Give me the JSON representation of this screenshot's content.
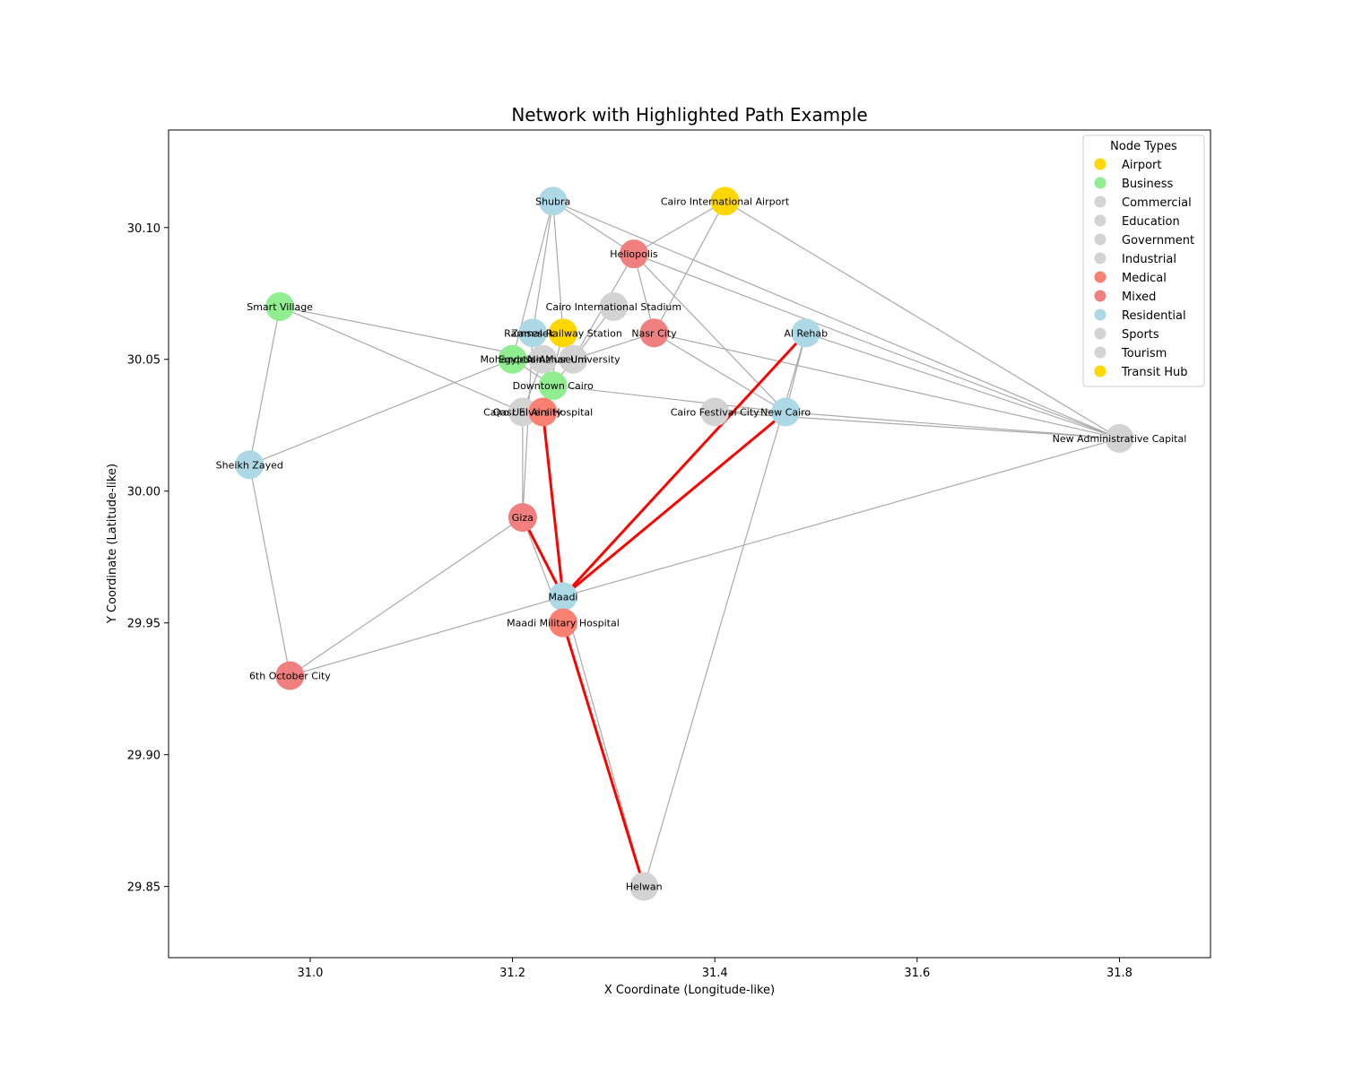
{
  "chart_data": {
    "type": "network",
    "title": "Network with Highlighted Path Example",
    "xlabel": "X Coordinate (Longitude-like)",
    "ylabel": "Y Coordinate (Latitude-like)",
    "xlim": [
      30.86,
      31.89
    ],
    "ylim": [
      29.823,
      30.137
    ],
    "xticks": [
      31.0,
      31.2,
      31.4,
      31.6,
      31.8
    ],
    "yticks": [
      29.85,
      29.9,
      29.95,
      30.0,
      30.05,
      30.1
    ],
    "xtick_labels": [
      "31.0",
      "31.2",
      "31.4",
      "31.6",
      "31.8"
    ],
    "ytick_labels": [
      "29.85",
      "29.90",
      "29.95",
      "30.00",
      "30.05",
      "30.10"
    ],
    "grid": false,
    "legend": {
      "title": "Node Types",
      "placement": "top-right",
      "entries": [
        {
          "label": "Airport",
          "color": "#ffd700"
        },
        {
          "label": "Business",
          "color": "#90ee90"
        },
        {
          "label": "Commercial",
          "color": "#d3d3d3"
        },
        {
          "label": "Education",
          "color": "#d3d3d3"
        },
        {
          "label": "Government",
          "color": "#d3d3d3"
        },
        {
          "label": "Industrial",
          "color": "#d3d3d3"
        },
        {
          "label": "Medical",
          "color": "#fa8072"
        },
        {
          "label": "Mixed",
          "color": "#f08080"
        },
        {
          "label": "Residential",
          "color": "#add8e6"
        },
        {
          "label": "Sports",
          "color": "#d3d3d3"
        },
        {
          "label": "Tourism",
          "color": "#d3d3d3"
        },
        {
          "label": "Transit Hub",
          "color": "#ffd700"
        }
      ]
    },
    "type_colors": {
      "Airport": "#ffd700",
      "Business": "#90ee90",
      "Commercial": "#d3d3d3",
      "Education": "#d3d3d3",
      "Government": "#d3d3d3",
      "Industrial": "#d3d3d3",
      "Medical": "#fa8072",
      "Mixed": "#f08080",
      "Residential": "#add8e6",
      "Sports": "#d3d3d3",
      "Tourism": "#d3d3d3",
      "Transit Hub": "#ffd700"
    },
    "edge_color": "#aaaaaa",
    "highlight_color": "#ff0000",
    "nodes": [
      {
        "id": "shubra",
        "label": "Shubra",
        "x": 31.24,
        "y": 30.11,
        "type": "Residential"
      },
      {
        "id": "airport",
        "label": "Cairo International Airport",
        "x": 31.41,
        "y": 30.11,
        "type": "Airport"
      },
      {
        "id": "heliopolis",
        "label": "Heliopolis",
        "x": 31.32,
        "y": 30.09,
        "type": "Mixed"
      },
      {
        "id": "smartvillage",
        "label": "Smart Village",
        "x": 30.97,
        "y": 30.07,
        "type": "Business"
      },
      {
        "id": "stadium",
        "label": "Cairo International Stadium",
        "x": 31.3,
        "y": 30.07,
        "type": "Sports"
      },
      {
        "id": "zamalek",
        "label": "Zamalek",
        "x": 31.22,
        "y": 30.06,
        "type": "Residential"
      },
      {
        "id": "ramses",
        "label": "Ramses Railway Station",
        "x": 31.25,
        "y": 30.06,
        "type": "Transit Hub"
      },
      {
        "id": "nasrcity",
        "label": "Nasr City",
        "x": 31.34,
        "y": 30.06,
        "type": "Mixed"
      },
      {
        "id": "alrehab",
        "label": "Al Rehab",
        "x": 31.49,
        "y": 30.06,
        "type": "Residential"
      },
      {
        "id": "mohandessin",
        "label": "Mohandessin",
        "x": 31.2,
        "y": 30.05,
        "type": "Business"
      },
      {
        "id": "museum",
        "label": "Egyptian Museum",
        "x": 31.23,
        "y": 30.05,
        "type": "Tourism"
      },
      {
        "id": "alazhar",
        "label": "Al-Azhar University",
        "x": 31.26,
        "y": 30.05,
        "type": "Education"
      },
      {
        "id": "downtown",
        "label": "Downtown Cairo",
        "x": 31.24,
        "y": 30.04,
        "type": "Business"
      },
      {
        "id": "cairouniv",
        "label": "Cairo University",
        "x": 31.21,
        "y": 30.03,
        "type": "Education"
      },
      {
        "id": "qasr",
        "label": "Qasr El Aini Hospital",
        "x": 31.23,
        "y": 30.03,
        "type": "Medical"
      },
      {
        "id": "festival",
        "label": "Cairo Festival City",
        "x": 31.4,
        "y": 30.03,
        "type": "Commercial"
      },
      {
        "id": "newcairo",
        "label": "New Cairo",
        "x": 31.47,
        "y": 30.03,
        "type": "Residential"
      },
      {
        "id": "nac",
        "label": "New Administrative Capital",
        "x": 31.8,
        "y": 30.02,
        "type": "Government"
      },
      {
        "id": "sheikhzayed",
        "label": "Sheikh Zayed",
        "x": 30.94,
        "y": 30.01,
        "type": "Residential"
      },
      {
        "id": "giza",
        "label": "Giza",
        "x": 31.21,
        "y": 29.99,
        "type": "Mixed"
      },
      {
        "id": "maadi",
        "label": "Maadi",
        "x": 31.25,
        "y": 29.96,
        "type": "Residential"
      },
      {
        "id": "maadihosp",
        "label": "Maadi Military Hospital",
        "x": 31.25,
        "y": 29.95,
        "type": "Medical"
      },
      {
        "id": "october",
        "label": "6th October City",
        "x": 30.98,
        "y": 29.93,
        "type": "Mixed"
      },
      {
        "id": "helwan",
        "label": "Helwan",
        "x": 31.33,
        "y": 29.85,
        "type": "Industrial"
      }
    ],
    "edges": [
      [
        "shubra",
        "zamalek"
      ],
      [
        "shubra",
        "ramses"
      ],
      [
        "shubra",
        "heliopolis"
      ],
      [
        "shubra",
        "nac"
      ],
      [
        "shubra",
        "mohandessin"
      ],
      [
        "airport",
        "heliopolis"
      ],
      [
        "airport",
        "nasrcity"
      ],
      [
        "airport",
        "nac"
      ],
      [
        "heliopolis",
        "nasrcity"
      ],
      [
        "heliopolis",
        "newcairo"
      ],
      [
        "heliopolis",
        "nac"
      ],
      [
        "heliopolis",
        "alazhar"
      ],
      [
        "smartvillage",
        "sheikhzayed"
      ],
      [
        "smartvillage",
        "cairouniv"
      ],
      [
        "smartvillage",
        "museum"
      ],
      [
        "stadium",
        "downtown"
      ],
      [
        "zamalek",
        "giza"
      ],
      [
        "zamalek",
        "downtown"
      ],
      [
        "ramses",
        "qasr"
      ],
      [
        "nasrcity",
        "newcairo"
      ],
      [
        "nasrcity",
        "nac"
      ],
      [
        "nasrcity",
        "alazhar"
      ],
      [
        "alrehab",
        "newcairo"
      ],
      [
        "alrehab",
        "helwan"
      ],
      [
        "alrehab",
        "nac"
      ],
      [
        "mohandessin",
        "sheikhzayed"
      ],
      [
        "mohandessin",
        "downtown"
      ],
      [
        "downtown",
        "newcairo"
      ],
      [
        "cairouniv",
        "giza"
      ],
      [
        "cairouniv",
        "qasr"
      ],
      [
        "cairouniv",
        "museum"
      ],
      [
        "festival",
        "newcairo"
      ],
      [
        "festival",
        "nac"
      ],
      [
        "newcairo",
        "nac"
      ],
      [
        "sheikhzayed",
        "october"
      ],
      [
        "giza",
        "october"
      ],
      [
        "giza",
        "maadihosp"
      ],
      [
        "maadi",
        "october"
      ],
      [
        "maadi",
        "nac"
      ],
      [
        "maadi",
        "helwan"
      ]
    ],
    "highlighted_path": [
      [
        "qasr",
        "maadi"
      ],
      [
        "giza",
        "maadi"
      ],
      [
        "maadi",
        "alrehab"
      ],
      [
        "maadi",
        "newcairo"
      ],
      [
        "maadihosp",
        "helwan"
      ]
    ]
  }
}
